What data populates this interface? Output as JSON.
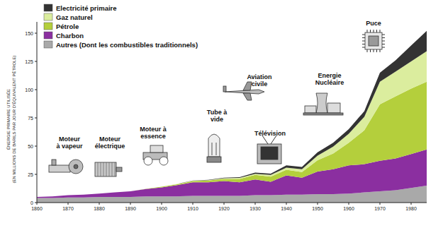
{
  "chart_data": {
    "type": "area",
    "stacked": true,
    "legend": "upper left",
    "y_label": [
      "ÉNERGIE PRIMAIRE UTILISÉE",
      "(EN MILLIONS DE BARILS PAR JOUR D'ÉQUIVALENT PÉTROLE)"
    ],
    "x": [
      1860,
      1865,
      1870,
      1875,
      1880,
      1885,
      1890,
      1895,
      1900,
      1905,
      1910,
      1915,
      1920,
      1925,
      1930,
      1935,
      1940,
      1945,
      1950,
      1955,
      1960,
      1965,
      1970,
      1975,
      1980,
      1985
    ],
    "series": [
      {
        "name": "Autres (Dont les combustibles traditionnels)",
        "color": "#a9a9a9",
        "values": [
          4,
          4,
          4.5,
          4.5,
          5,
          5,
          5,
          5.5,
          5.5,
          5.5,
          6,
          6,
          6,
          6,
          6.5,
          6.5,
          7,
          7,
          7.5,
          7.5,
          8,
          9,
          10,
          11,
          13,
          15
        ]
      },
      {
        "name": "Charbon",
        "color": "#8b2fa0",
        "values": [
          1,
          1.5,
          2,
          2.5,
          3,
          4,
          5,
          6.5,
          8,
          10,
          12,
          12,
          13,
          12,
          14,
          12,
          17,
          15,
          20,
          22,
          25,
          25,
          27,
          28,
          30,
          32
        ]
      },
      {
        "name": "Pétrole",
        "color": "#b4cf3c",
        "values": [
          0,
          0,
          0,
          0,
          0,
          0,
          0,
          0.2,
          0.5,
          0.8,
          1,
          1.5,
          2,
          3,
          4,
          4.5,
          5,
          5,
          10,
          14,
          20,
          30,
          50,
          55,
          58,
          60
        ]
      },
      {
        "name": "Gaz naturel",
        "color": "#dbed9e",
        "values": [
          0,
          0,
          0,
          0,
          0,
          0,
          0,
          0,
          0,
          0.2,
          0.3,
          0.4,
          0.5,
          0.8,
          1,
          1.5,
          2,
          2.5,
          4,
          6,
          8,
          12,
          20,
          22,
          24,
          27
        ]
      },
      {
        "name": "Electricité primaire",
        "color": "#333333",
        "values": [
          0,
          0,
          0,
          0,
          0,
          0,
          0,
          0,
          0,
          0.1,
          0.2,
          0.3,
          0.5,
          0.7,
          1,
          1.2,
          2,
          2,
          3,
          3.5,
          4,
          5,
          8,
          10,
          14,
          18
        ]
      }
    ],
    "xlim": [
      1860,
      1985
    ],
    "xticks": [
      1860,
      1870,
      1880,
      1890,
      1900,
      1910,
      1920,
      1930,
      1940,
      1950,
      1960,
      1970,
      1980
    ],
    "ylim": [
      0,
      160
    ],
    "yticks": [
      0,
      25,
      50,
      75,
      100,
      125,
      150
    ],
    "grid": false,
    "annotations": [
      {
        "lines": [
          "Moteur",
          "à vapeur"
        ]
      },
      {
        "lines": [
          "Moteur",
          "électrique"
        ]
      },
      {
        "lines": [
          "Moteur à",
          "essence"
        ]
      },
      {
        "lines": [
          "Tube à",
          "vide"
        ]
      },
      {
        "lines": [
          "Télévision"
        ]
      },
      {
        "lines": [
          "Aviation",
          "civile"
        ]
      },
      {
        "lines": [
          "Energie",
          "Nucléaire"
        ]
      },
      {
        "lines": [
          "Puce"
        ]
      }
    ]
  }
}
